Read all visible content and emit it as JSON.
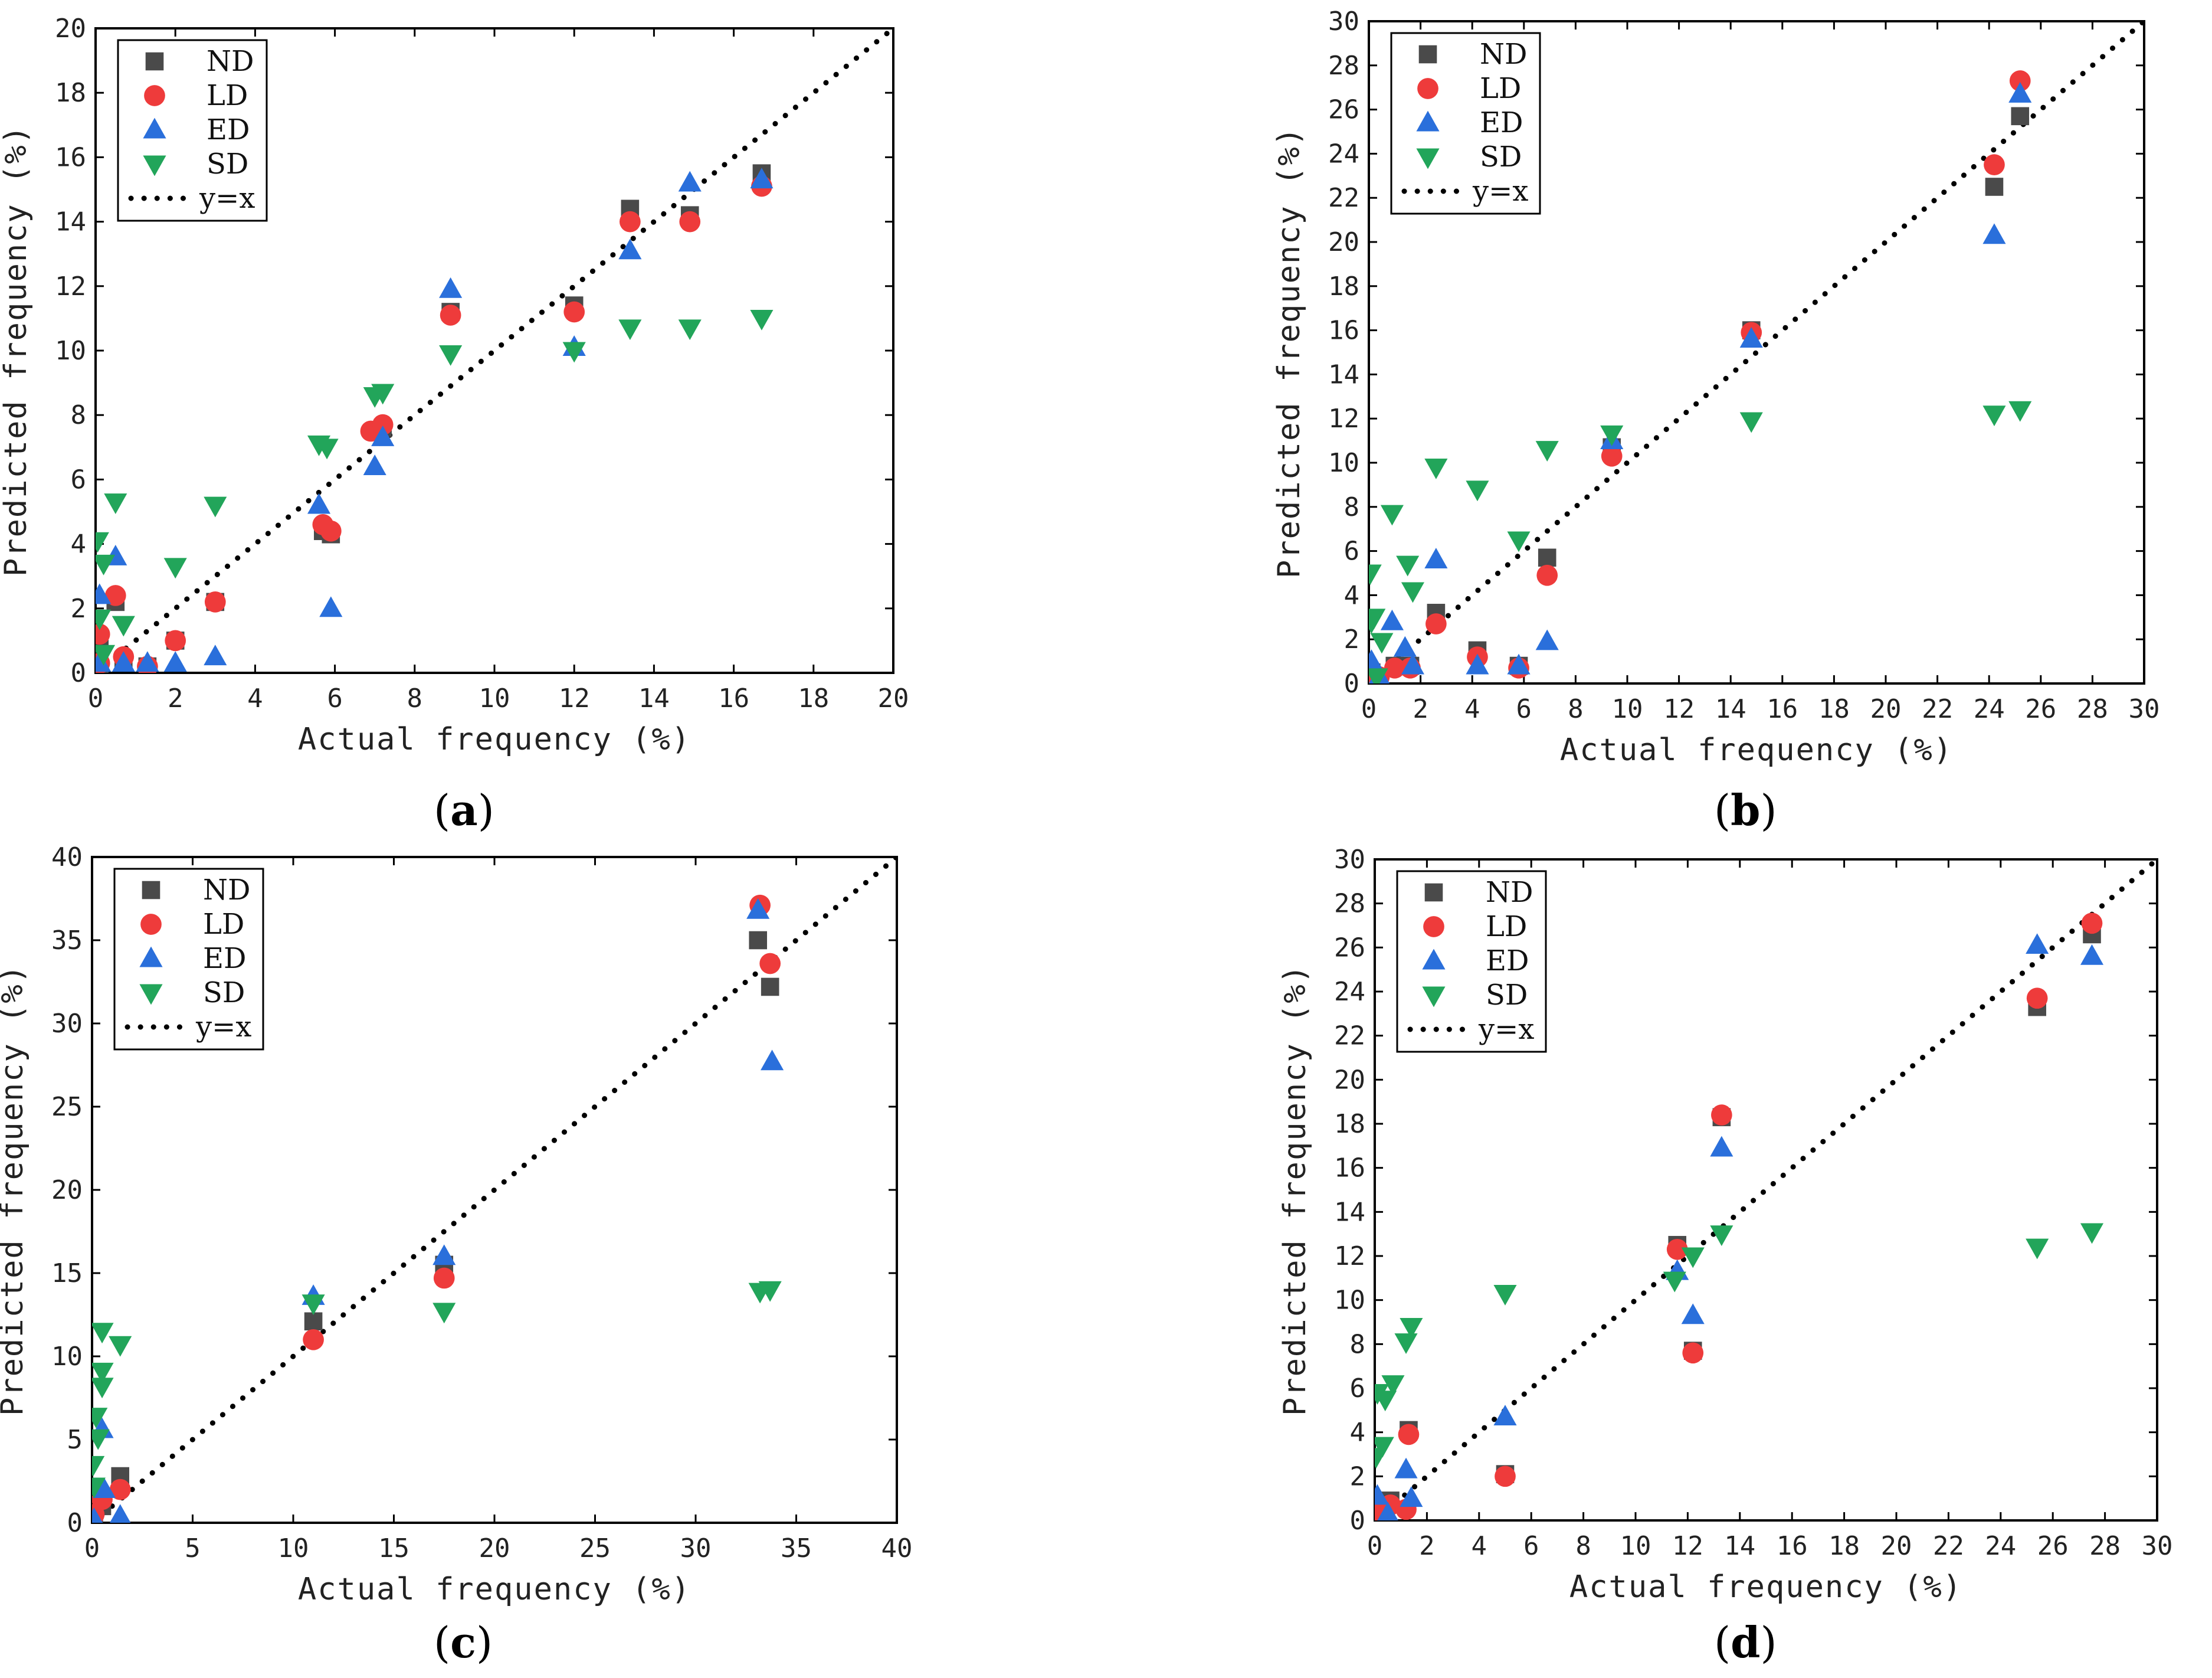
{
  "colors": {
    "ND": "#4a4a4a",
    "LD": "#ee3b3b",
    "ED": "#2a6fdb",
    "SD": "#22a55a"
  },
  "legend_labels": {
    "ND": "ND",
    "LD": "LD",
    "ED": "ED",
    "SD": "SD",
    "fit": "y=x"
  },
  "panels": [
    {
      "id": "a",
      "caption_letter": "a"
    },
    {
      "id": "b",
      "caption_letter": "b"
    },
    {
      "id": "c",
      "caption_letter": "c"
    },
    {
      "id": "d",
      "caption_letter": "d"
    }
  ],
  "chart_data": [
    {
      "type": "scatter",
      "panel": "a",
      "xlabel": "Actual frequency (%)",
      "ylabel": "Predicted frequency (%)",
      "xlim": [
        0,
        20
      ],
      "ylim": [
        0,
        20
      ],
      "xticks": [
        0,
        2,
        4,
        6,
        8,
        10,
        12,
        14,
        16,
        18,
        20
      ],
      "yticks": [
        0,
        2,
        4,
        6,
        8,
        10,
        12,
        14,
        16,
        18,
        20
      ],
      "reference_line": {
        "label": "y=x",
        "from": 0,
        "to": 20
      },
      "series": [
        {
          "name": "ND",
          "marker": "square",
          "points": [
            [
              0.1,
              0.9
            ],
            [
              0.1,
              0.2
            ],
            [
              0.5,
              2.2
            ],
            [
              0.7,
              0.4
            ],
            [
              1.3,
              0.2
            ],
            [
              2.0,
              1.0
            ],
            [
              3.0,
              2.2
            ],
            [
              5.7,
              4.4
            ],
            [
              5.9,
              4.3
            ],
            [
              7.0,
              7.5
            ],
            [
              7.2,
              7.6
            ],
            [
              8.9,
              11.2
            ],
            [
              12.0,
              11.4
            ],
            [
              13.4,
              14.4
            ],
            [
              14.9,
              14.2
            ],
            [
              16.7,
              15.5
            ]
          ]
        },
        {
          "name": "LD",
          "marker": "circle",
          "points": [
            [
              0.1,
              1.2
            ],
            [
              0.1,
              0.3
            ],
            [
              0.5,
              2.4
            ],
            [
              0.7,
              0.5
            ],
            [
              1.3,
              0.2
            ],
            [
              2.0,
              1.0
            ],
            [
              3.0,
              2.2
            ],
            [
              5.7,
              4.6
            ],
            [
              5.9,
              4.4
            ],
            [
              6.9,
              7.5
            ],
            [
              7.2,
              7.7
            ],
            [
              8.9,
              11.1
            ],
            [
              12.0,
              11.2
            ],
            [
              13.4,
              14.0
            ],
            [
              14.9,
              14.0
            ],
            [
              16.7,
              15.1
            ]
          ]
        },
        {
          "name": "ED",
          "marker": "triangle-up",
          "points": [
            [
              0.1,
              2.4
            ],
            [
              0.1,
              0.3
            ],
            [
              0.5,
              3.6
            ],
            [
              0.7,
              0.3
            ],
            [
              1.3,
              0.3
            ],
            [
              2.0,
              0.3
            ],
            [
              3.0,
              0.5
            ],
            [
              5.6,
              5.2
            ],
            [
              5.9,
              2.0
            ],
            [
              7.0,
              6.4
            ],
            [
              7.2,
              7.3
            ],
            [
              8.9,
              11.9
            ],
            [
              12.0,
              10.1
            ],
            [
              13.4,
              13.1
            ],
            [
              14.9,
              15.2
            ],
            [
              16.7,
              15.3
            ]
          ]
        },
        {
          "name": "SD",
          "marker": "triangle-down",
          "points": [
            [
              0.05,
              4.1
            ],
            [
              0.1,
              1.7
            ],
            [
              0.2,
              3.4
            ],
            [
              0.2,
              0.6
            ],
            [
              0.5,
              5.3
            ],
            [
              0.7,
              1.5
            ],
            [
              2.0,
              3.3
            ],
            [
              3.0,
              5.2
            ],
            [
              5.6,
              7.1
            ],
            [
              5.8,
              7.0
            ],
            [
              7.0,
              8.6
            ],
            [
              7.2,
              8.7
            ],
            [
              8.9,
              9.9
            ],
            [
              12.0,
              10.0
            ],
            [
              13.4,
              10.7
            ],
            [
              14.9,
              10.7
            ],
            [
              16.7,
              11.0
            ]
          ]
        }
      ]
    },
    {
      "type": "scatter",
      "panel": "b",
      "xlabel": "Actual frequency (%)",
      "ylabel": "Predicted frequency (%)",
      "xlim": [
        0,
        30
      ],
      "ylim": [
        0,
        30
      ],
      "xticks": [
        0,
        2,
        4,
        6,
        8,
        10,
        12,
        14,
        16,
        18,
        20,
        22,
        24,
        26,
        28,
        30
      ],
      "yticks": [
        0,
        2,
        4,
        6,
        8,
        10,
        12,
        14,
        16,
        18,
        20,
        22,
        24,
        26,
        28,
        30
      ],
      "reference_line": {
        "label": "y=x",
        "from": 0,
        "to": 30
      },
      "series": [
        {
          "name": "ND",
          "marker": "square",
          "points": [
            [
              0.1,
              0.5
            ],
            [
              0.4,
              0.3
            ],
            [
              1.0,
              0.8
            ],
            [
              1.6,
              0.8
            ],
            [
              2.6,
              3.2
            ],
            [
              4.2,
              1.5
            ],
            [
              5.8,
              0.8
            ],
            [
              6.9,
              5.7
            ],
            [
              9.4,
              10.7
            ],
            [
              14.8,
              16.0
            ],
            [
              24.2,
              22.5
            ],
            [
              25.2,
              25.7
            ]
          ]
        },
        {
          "name": "LD",
          "marker": "circle",
          "points": [
            [
              0.1,
              0.4
            ],
            [
              0.4,
              0.3
            ],
            [
              1.0,
              0.7
            ],
            [
              1.6,
              0.7
            ],
            [
              2.6,
              2.7
            ],
            [
              4.2,
              1.2
            ],
            [
              5.8,
              0.7
            ],
            [
              6.9,
              4.9
            ],
            [
              9.4,
              10.3
            ],
            [
              14.8,
              15.9
            ],
            [
              24.2,
              23.5
            ],
            [
              25.2,
              27.3
            ]
          ]
        },
        {
          "name": "ED",
          "marker": "triangle-up",
          "points": [
            [
              0.1,
              1.0
            ],
            [
              0.4,
              0.3
            ],
            [
              0.9,
              2.8
            ],
            [
              1.4,
              1.6
            ],
            [
              1.7,
              0.8
            ],
            [
              2.6,
              5.6
            ],
            [
              4.2,
              0.8
            ],
            [
              5.8,
              0.8
            ],
            [
              6.9,
              1.9
            ],
            [
              9.4,
              11.0
            ],
            [
              14.8,
              15.6
            ],
            [
              24.2,
              20.3
            ],
            [
              25.2,
              26.7
            ]
          ]
        },
        {
          "name": "SD",
          "marker": "triangle-down",
          "points": [
            [
              0.05,
              5.0
            ],
            [
              0.1,
              2.8
            ],
            [
              0.2,
              3.0
            ],
            [
              0.3,
              0.3
            ],
            [
              0.5,
              1.9
            ],
            [
              0.9,
              7.7
            ],
            [
              1.5,
              5.4
            ],
            [
              1.7,
              4.2
            ],
            [
              2.6,
              9.8
            ],
            [
              4.2,
              8.8
            ],
            [
              5.8,
              6.5
            ],
            [
              6.9,
              10.6
            ],
            [
              9.4,
              11.3
            ],
            [
              14.8,
              11.9
            ],
            [
              24.2,
              12.2
            ],
            [
              25.2,
              12.4
            ]
          ]
        }
      ]
    },
    {
      "type": "scatter",
      "panel": "c",
      "xlabel": "Actual frequency (%)",
      "ylabel": "Predicted frequency (%)",
      "xlim": [
        0,
        40
      ],
      "ylim": [
        0,
        40
      ],
      "xticks": [
        0,
        5,
        10,
        15,
        20,
        25,
        30,
        35,
        40
      ],
      "yticks": [
        0,
        5,
        10,
        15,
        20,
        25,
        30,
        35,
        40
      ],
      "reference_line": {
        "label": "y=x",
        "from": 0,
        "to": 40
      },
      "series": [
        {
          "name": "ND",
          "marker": "square",
          "points": [
            [
              0.1,
              0.3
            ],
            [
              0.5,
              1.0
            ],
            [
              1.4,
              2.8
            ],
            [
              11.0,
              12.1
            ],
            [
              17.5,
              15.5
            ],
            [
              33.1,
              35.0
            ],
            [
              33.7,
              32.2
            ]
          ]
        },
        {
          "name": "LD",
          "marker": "circle",
          "points": [
            [
              0.1,
              0.5
            ],
            [
              0.5,
              1.4
            ],
            [
              1.4,
              2.0
            ],
            [
              11.0,
              11.0
            ],
            [
              17.5,
              14.7
            ],
            [
              33.2,
              37.1
            ],
            [
              33.7,
              33.6
            ]
          ]
        },
        {
          "name": "ED",
          "marker": "triangle-up",
          "points": [
            [
              0.1,
              0.2
            ],
            [
              0.5,
              5.6
            ],
            [
              0.6,
              2.0
            ],
            [
              1.4,
              0.4
            ],
            [
              11.0,
              13.6
            ],
            [
              17.5,
              16.0
            ],
            [
              33.1,
              36.8
            ],
            [
              33.8,
              27.7
            ]
          ]
        },
        {
          "name": "SD",
          "marker": "triangle-down",
          "points": [
            [
              0.05,
              3.5
            ],
            [
              0.1,
              2.2
            ],
            [
              0.2,
              6.4
            ],
            [
              0.3,
              5.1
            ],
            [
              0.5,
              11.5
            ],
            [
              0.5,
              9.1
            ],
            [
              0.5,
              8.2
            ],
            [
              1.4,
              10.7
            ],
            [
              11.0,
              13.2
            ],
            [
              17.5,
              12.7
            ],
            [
              33.2,
              13.9
            ],
            [
              33.7,
              14.0
            ]
          ]
        }
      ]
    },
    {
      "type": "scatter",
      "panel": "d",
      "xlabel": "Actual frequency (%)",
      "ylabel": "Predicted frequency (%)",
      "xlim": [
        0,
        30
      ],
      "ylim": [
        0,
        30
      ],
      "xticks": [
        0,
        2,
        4,
        6,
        8,
        10,
        12,
        14,
        16,
        18,
        20,
        22,
        24,
        26,
        28,
        30
      ],
      "yticks": [
        0,
        2,
        4,
        6,
        8,
        10,
        12,
        14,
        16,
        18,
        20,
        22,
        24,
        26,
        28,
        30
      ],
      "reference_line": {
        "label": "y=x",
        "from": 0,
        "to": 30
      },
      "series": [
        {
          "name": "ND",
          "marker": "square",
          "points": [
            [
              0.1,
              0.5
            ],
            [
              0.6,
              0.9
            ],
            [
              1.3,
              4.1
            ],
            [
              5.0,
              2.1
            ],
            [
              11.6,
              12.5
            ],
            [
              12.2,
              7.7
            ],
            [
              13.3,
              18.3
            ],
            [
              25.4,
              23.3
            ],
            [
              27.5,
              26.6
            ]
          ]
        },
        {
          "name": "LD",
          "marker": "circle",
          "points": [
            [
              0.1,
              0.3
            ],
            [
              0.6,
              0.7
            ],
            [
              1.2,
              0.5
            ],
            [
              1.3,
              3.9
            ],
            [
              5.0,
              2.0
            ],
            [
              11.6,
              12.3
            ],
            [
              12.2,
              7.6
            ],
            [
              13.3,
              18.4
            ],
            [
              25.4,
              23.7
            ],
            [
              27.5,
              27.1
            ]
          ]
        },
        {
          "name": "ED",
          "marker": "triangle-up",
          "points": [
            [
              0.1,
              1.1
            ],
            [
              0.5,
              0.3
            ],
            [
              1.2,
              2.3
            ],
            [
              1.4,
              1.0
            ],
            [
              5.0,
              4.7
            ],
            [
              11.6,
              11.3
            ],
            [
              12.2,
              9.3
            ],
            [
              13.3,
              16.9
            ],
            [
              25.4,
              26.1
            ],
            [
              27.5,
              25.6
            ]
          ]
        },
        {
          "name": "SD",
          "marker": "triangle-down",
          "points": [
            [
              0.05,
              2.9
            ],
            [
              0.1,
              5.8
            ],
            [
              0.3,
              3.4
            ],
            [
              0.4,
              5.5
            ],
            [
              0.7,
              6.2
            ],
            [
              1.2,
              8.1
            ],
            [
              1.4,
              8.8
            ],
            [
              5.0,
              10.3
            ],
            [
              11.5,
              10.9
            ],
            [
              12.2,
              12.0
            ],
            [
              13.3,
              13.0
            ],
            [
              25.4,
              12.4
            ],
            [
              27.5,
              13.1
            ]
          ]
        }
      ]
    }
  ]
}
